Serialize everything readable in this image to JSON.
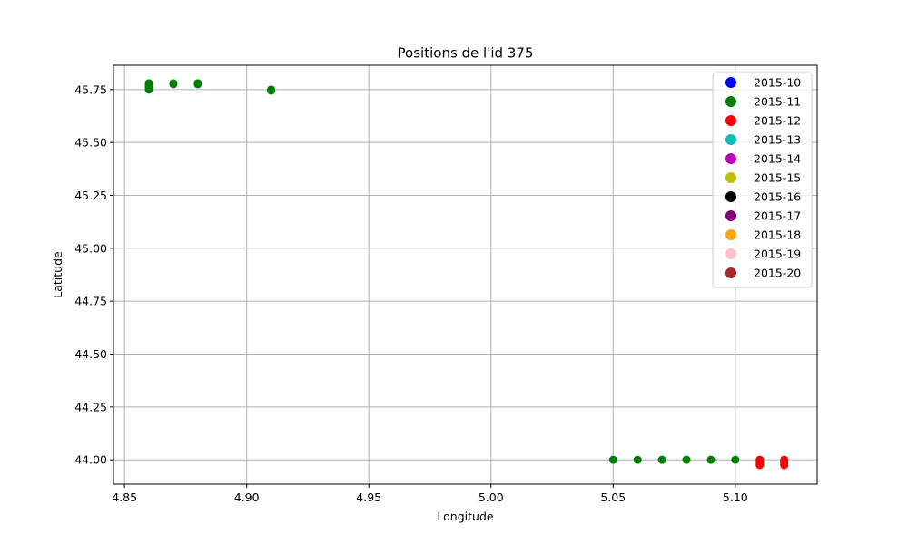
{
  "chart_data": {
    "type": "scatter",
    "title": "Positions de l'id 375",
    "xlabel": "Longitude",
    "ylabel": "Latitude",
    "xlim": [
      4.8455,
      5.1335
    ],
    "ylim": [
      43.885,
      45.865
    ],
    "xticks": [
      4.85,
      4.9,
      4.95,
      5.0,
      5.05,
      5.1
    ],
    "xtick_labels": [
      "4.85",
      "4.90",
      "4.95",
      "5.00",
      "5.05",
      "5.10"
    ],
    "yticks": [
      44.0,
      44.25,
      44.5,
      44.75,
      45.0,
      45.25,
      45.5,
      45.75
    ],
    "ytick_labels": [
      "44.00",
      "44.25",
      "44.50",
      "44.75",
      "45.00",
      "45.25",
      "45.50",
      "45.75"
    ],
    "grid": true,
    "legend_position": "top-right",
    "series": [
      {
        "name": "2015-10",
        "color": "#0000ff",
        "points": []
      },
      {
        "name": "2015-11",
        "color": "#008000",
        "points": [
          [
            4.86,
            45.78
          ],
          [
            4.86,
            45.77
          ],
          [
            4.86,
            45.76
          ],
          [
            4.86,
            45.75
          ],
          [
            4.87,
            45.78
          ],
          [
            4.87,
            45.775
          ],
          [
            4.88,
            45.78
          ],
          [
            4.88,
            45.775
          ],
          [
            4.91,
            45.75
          ],
          [
            4.91,
            45.745
          ],
          [
            5.05,
            44.0
          ],
          [
            5.06,
            44.0
          ],
          [
            5.07,
            44.0
          ],
          [
            5.08,
            44.0
          ],
          [
            5.09,
            44.0
          ],
          [
            5.1,
            44.0
          ]
        ]
      },
      {
        "name": "2015-12",
        "color": "#ff0000",
        "points": [
          [
            5.11,
            44.0
          ],
          [
            5.11,
            43.99
          ],
          [
            5.11,
            43.98
          ],
          [
            5.11,
            43.975
          ],
          [
            5.12,
            44.0
          ],
          [
            5.12,
            43.99
          ],
          [
            5.12,
            43.98
          ],
          [
            5.12,
            43.975
          ]
        ]
      },
      {
        "name": "2015-13",
        "color": "#00bfbf",
        "points": []
      },
      {
        "name": "2015-14",
        "color": "#bf00bf",
        "points": []
      },
      {
        "name": "2015-15",
        "color": "#bfbf00",
        "points": []
      },
      {
        "name": "2015-16",
        "color": "#000000",
        "points": []
      },
      {
        "name": "2015-17",
        "color": "#800080",
        "points": []
      },
      {
        "name": "2015-18",
        "color": "#ffa500",
        "points": []
      },
      {
        "name": "2015-19",
        "color": "#ffc0cb",
        "points": []
      },
      {
        "name": "2015-20",
        "color": "#a52a2a",
        "points": []
      }
    ]
  }
}
